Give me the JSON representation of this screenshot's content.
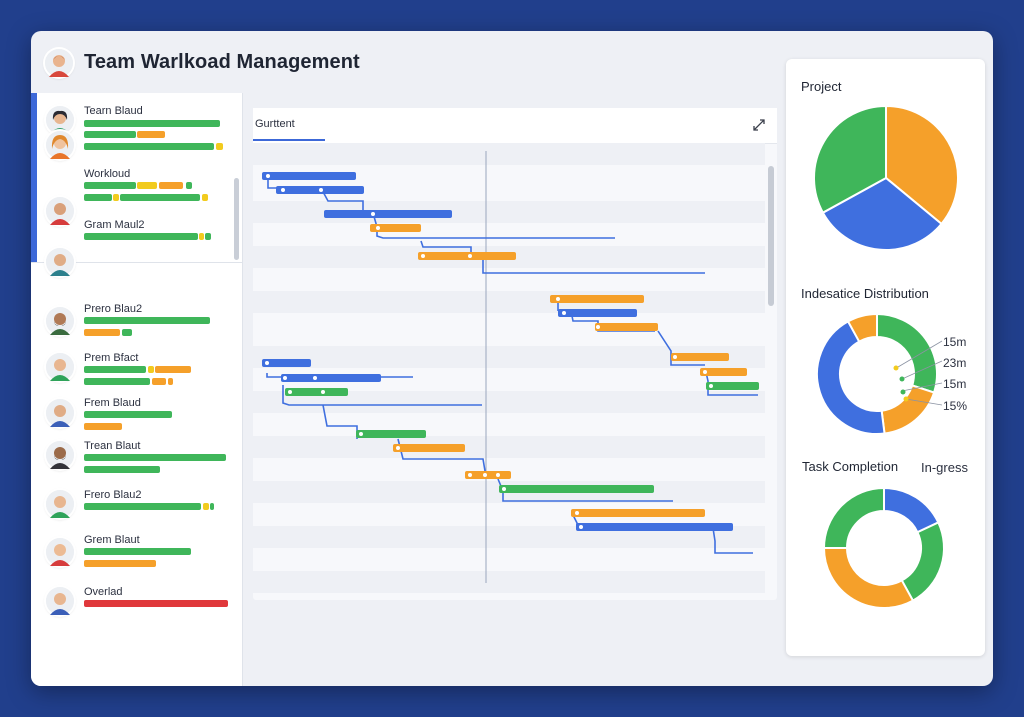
{
  "window": {
    "title": "Team Warlkoad Management"
  },
  "colors": {
    "green": "#3fb65a",
    "orange": "#f5a02a",
    "yellow": "#f2cb1e",
    "blue": "#3f6fdf",
    "red": "#e0383b",
    "line": "#3f6fdf"
  },
  "team": {
    "members": [
      {
        "name": "Tearn Blaud"
      },
      {
        "name": "Workloud"
      },
      {
        "name": "Gram Maul2"
      },
      {
        "name": "Prero Blau2"
      },
      {
        "name": "Prem Bfact"
      },
      {
        "name": "Frem Blaud"
      },
      {
        "name": "Trean Blaut"
      },
      {
        "name": "Frero Blau2"
      },
      {
        "name": "Grem Blaut"
      },
      {
        "name": "Overlad"
      }
    ]
  },
  "gantt": {
    "tab_label": "Gurttent"
  },
  "project": {
    "title": "Project",
    "chart_data": {
      "type": "pie",
      "title": "Project",
      "slices": [
        {
          "value": 36,
          "color": "#f5a02a"
        },
        {
          "value": 31,
          "color": "#3f6fdf"
        },
        {
          "value": 33,
          "color": "#3fb65a"
        }
      ]
    }
  },
  "distribution": {
    "title": "Indesatice Distribution",
    "labels": [
      "15m",
      "23m",
      "15m",
      "15%"
    ],
    "chart_data": {
      "type": "pie",
      "title": "Indesatice Distribution",
      "slices": [
        {
          "label": "15m",
          "value": 30,
          "color": "#3fb65a"
        },
        {
          "label": "15%",
          "value": 18,
          "color": "#f5a02a"
        },
        {
          "value": 44,
          "color": "#3f6fdf"
        },
        {
          "value": 8,
          "color": "#f5a02a"
        }
      ]
    }
  },
  "completion": {
    "title": "Task Completion",
    "status": "In-gress",
    "chart_data": {
      "type": "pie",
      "title": "Task Completion",
      "slices": [
        {
          "value": 18,
          "color": "#3f6fdf"
        },
        {
          "value": 24,
          "color": "#3fb65a"
        },
        {
          "value": 33,
          "color": "#f5a02a"
        },
        {
          "value": 25,
          "color": "#3fb65a"
        }
      ]
    }
  }
}
